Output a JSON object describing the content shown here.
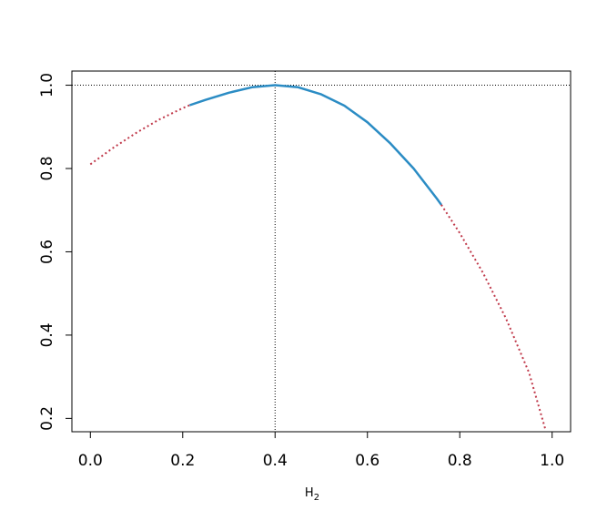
{
  "chart_data": {
    "type": "line",
    "xlabel": "H",
    "xlabel_subscript": "2",
    "ylabel": "",
    "xlim": [
      -0.04,
      1.04
    ],
    "ylim": [
      0.168,
      1.034
    ],
    "x_ticks": [
      0.0,
      0.2,
      0.4,
      0.6,
      0.8,
      1.0
    ],
    "x_tick_labels": [
      "0.0",
      "0.2",
      "0.4",
      "0.6",
      "0.8",
      "1.0"
    ],
    "y_ticks": [
      0.2,
      0.4,
      0.6,
      0.8,
      1.0
    ],
    "y_tick_labels": [
      "0.2",
      "0.4",
      "0.6",
      "0.8",
      "1.0"
    ],
    "grid": false,
    "reference_lines": {
      "horizontal_y": 1.0,
      "vertical_x": 0.4,
      "color": "#000000",
      "style": "dotted"
    },
    "series": [
      {
        "style": "dotted",
        "color": "#C0394A",
        "x": [
          0.0,
          0.05,
          0.1,
          0.15,
          0.2,
          0.215
        ],
        "y": [
          0.81,
          0.85,
          0.886,
          0.918,
          0.945,
          0.952
        ]
      },
      {
        "style": "solid",
        "color": "#2B8CC4",
        "x": [
          0.215,
          0.25,
          0.3,
          0.35,
          0.4,
          0.45,
          0.5,
          0.55,
          0.6,
          0.65,
          0.7,
          0.75,
          0.76
        ],
        "y": [
          0.952,
          0.965,
          0.982,
          0.995,
          1.0,
          0.995,
          0.978,
          0.951,
          0.911,
          0.86,
          0.8,
          0.728,
          0.713
        ]
      },
      {
        "style": "dotted",
        "color": "#C0394A",
        "x": [
          0.76,
          0.8,
          0.85,
          0.9,
          0.95,
          0.985
        ],
        "y": [
          0.713,
          0.645,
          0.55,
          0.44,
          0.31,
          0.175
        ]
      }
    ]
  }
}
